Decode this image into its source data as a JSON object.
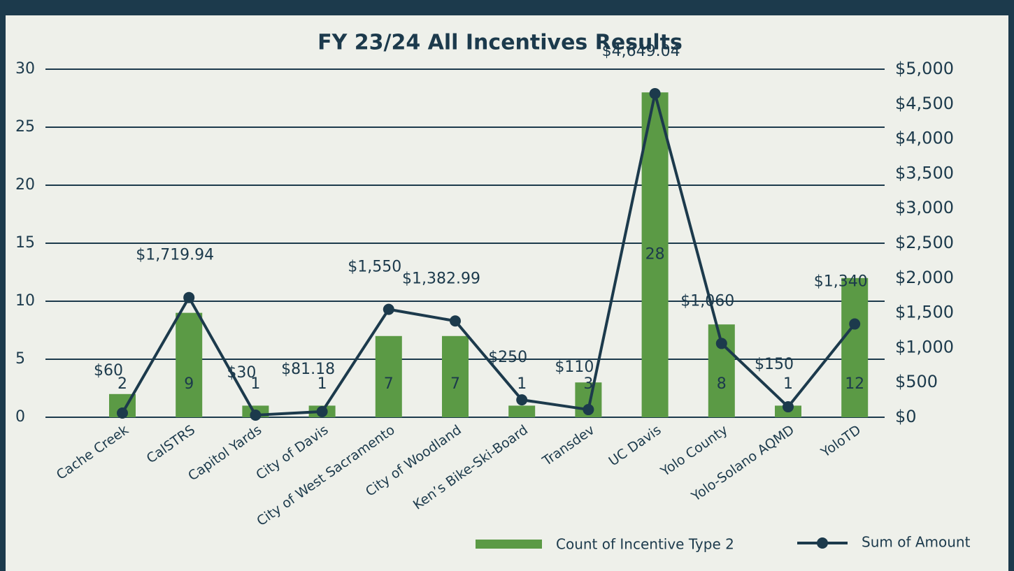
{
  "chart_data": {
    "type": "bar-line",
    "title": "FY 23/24 All Incentives Results",
    "categories": [
      "Cache Creek",
      "CalSTRS",
      "Capitol Yards",
      "City of Davis",
      "City of West Sacramento",
      "City of Woodland",
      "Ken’s Bike-Ski-Board",
      "Transdev",
      "UC Davis",
      "Yolo County",
      "Yolo-Solano AQMD",
      "YoloTD"
    ],
    "series": [
      {
        "name": "Count of Incentive Type 2",
        "type": "bar",
        "color": "#5b9a45",
        "axis": "y",
        "values": [
          2,
          9,
          1,
          1,
          7,
          7,
          1,
          3,
          28,
          8,
          1,
          12
        ]
      },
      {
        "name": "Sum of Amount",
        "type": "line",
        "color": "#1c3a4c",
        "axis": "y2",
        "values": [
          60,
          1719.94,
          30,
          81.18,
          1550,
          1382.99,
          250,
          110,
          4649.04,
          1060,
          150,
          1340
        ],
        "value_labels": [
          "$60",
          "$1,719.94",
          "$30",
          "$81.18",
          "$1,550",
          "$1,382.99",
          "$250",
          "$110",
          "$4,649.04",
          "$1,060",
          "$150",
          "$1,340"
        ]
      }
    ],
    "ylim": [
      0,
      30
    ],
    "yticks": [
      0,
      5,
      10,
      15,
      20,
      25,
      30
    ],
    "y2lim": [
      0,
      5000
    ],
    "y2ticks": [
      {
        "value": 0,
        "label": "$0"
      },
      {
        "value": 500,
        "label": "$500"
      },
      {
        "value": 1000,
        "label": "$1,000"
      },
      {
        "value": 1500,
        "label": "$1,500"
      },
      {
        "value": 2000,
        "label": "$2,000"
      },
      {
        "value": 2500,
        "label": "$2,500"
      },
      {
        "value": 3000,
        "label": "$3,000"
      },
      {
        "value": 3500,
        "label": "$3,500"
      },
      {
        "value": 4000,
        "label": "$4,000"
      },
      {
        "value": 4500,
        "label": "$4,500"
      },
      {
        "value": 5000,
        "label": "$5,000"
      }
    ],
    "grid": true,
    "legend": "bottom"
  }
}
